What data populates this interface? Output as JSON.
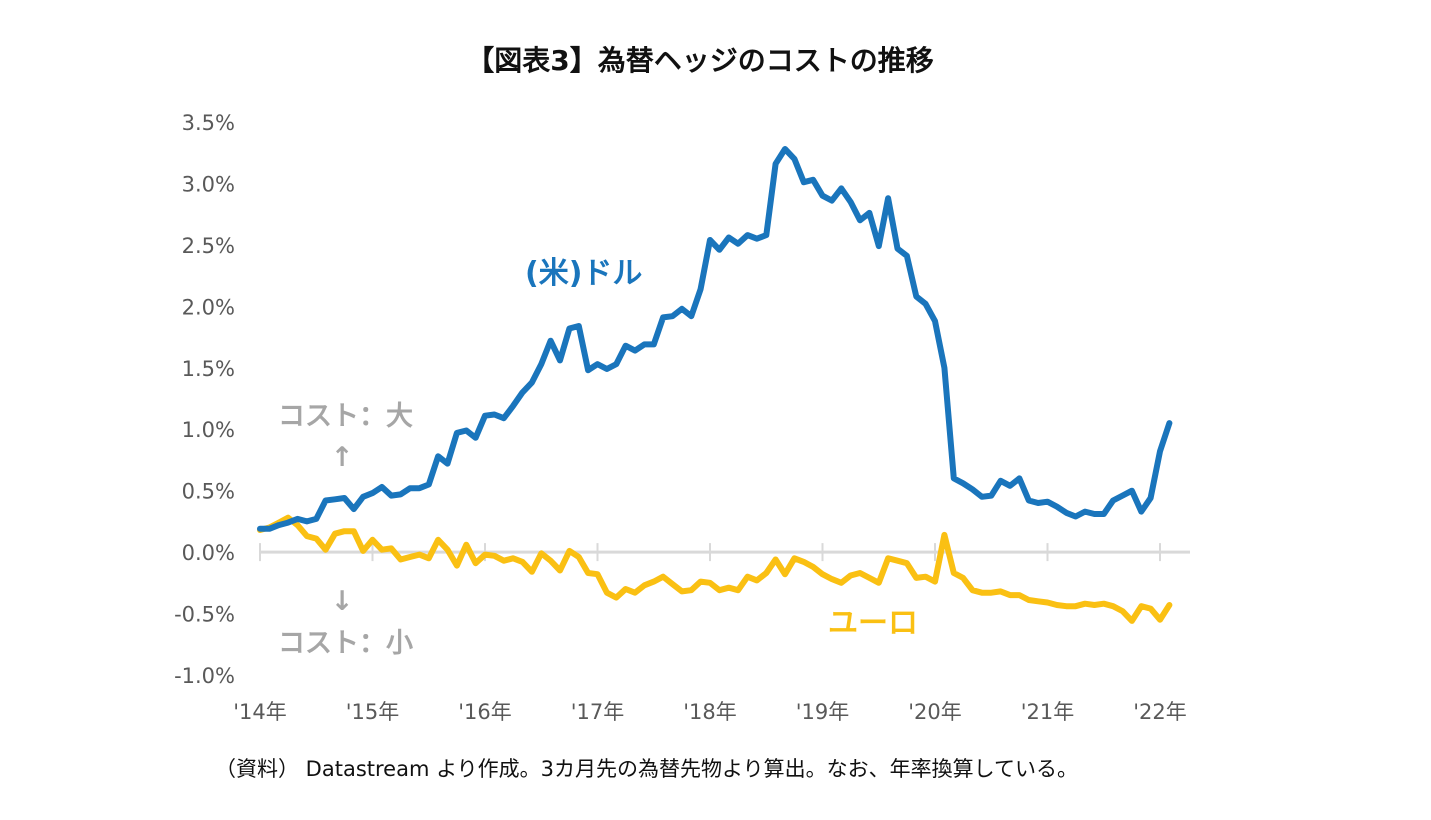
{
  "chart_data": {
    "type": "line",
    "title": "【図表3】為替ヘッジのコストの推移",
    "ylim": [
      -1.0,
      3.5
    ],
    "y_ticks": [
      3.5,
      3.0,
      2.5,
      2.0,
      1.5,
      1.0,
      0.5,
      0.0,
      -0.5,
      -1.0
    ],
    "y_tick_labels": [
      "3.5%",
      "3.0%",
      "2.5%",
      "2.0%",
      "1.5%",
      "1.0%",
      "0.5%",
      "0.0%",
      "-0.5%",
      "-1.0%"
    ],
    "x_tick_labels": [
      "'14年",
      "'15年",
      "'16年",
      "'17年",
      "'18年",
      "'19年",
      "'20年",
      "'21年",
      "'22年"
    ],
    "x_start_year": 2014,
    "points_per_year": 12,
    "grid": false,
    "series": [
      {
        "name": "(米)ドル",
        "color": "#1a75bc",
        "values": [
          0.19,
          0.19,
          0.22,
          0.24,
          0.27,
          0.25,
          0.27,
          0.42,
          0.43,
          0.44,
          0.35,
          0.45,
          0.48,
          0.53,
          0.46,
          0.47,
          0.52,
          0.52,
          0.55,
          0.78,
          0.72,
          0.97,
          0.99,
          0.93,
          1.11,
          1.12,
          1.09,
          1.19,
          1.3,
          1.38,
          1.53,
          1.72,
          1.56,
          1.82,
          1.84,
          1.48,
          1.53,
          1.49,
          1.53,
          1.68,
          1.64,
          1.69,
          1.69,
          1.91,
          1.92,
          1.98,
          1.92,
          2.14,
          2.54,
          2.46,
          2.56,
          2.51,
          2.58,
          2.55,
          2.58,
          3.16,
          3.28,
          3.2,
          3.01,
          3.03,
          2.9,
          2.86,
          2.96,
          2.85,
          2.7,
          2.76,
          2.49,
          2.88,
          2.47,
          2.41,
          2.08,
          2.02,
          1.88,
          1.5,
          0.6,
          0.56,
          0.51,
          0.45,
          0.46,
          0.58,
          0.54,
          0.6,
          0.42,
          0.4,
          0.41,
          0.37,
          0.32,
          0.29,
          0.33,
          0.31,
          0.31,
          0.42,
          0.46,
          0.5,
          0.33,
          0.44,
          0.82,
          1.05
        ]
      },
      {
        "name": "ユーロ",
        "color": "#fac013",
        "values": [
          0.18,
          0.2,
          0.24,
          0.28,
          0.22,
          0.13,
          0.11,
          0.02,
          0.15,
          0.17,
          0.17,
          0.01,
          0.1,
          0.02,
          0.03,
          -0.06,
          -0.04,
          -0.02,
          -0.05,
          0.1,
          0.02,
          -0.11,
          0.06,
          -0.09,
          -0.02,
          -0.03,
          -0.07,
          -0.05,
          -0.08,
          -0.16,
          -0.01,
          -0.07,
          -0.15,
          0.01,
          -0.04,
          -0.17,
          -0.18,
          -0.33,
          -0.37,
          -0.3,
          -0.33,
          -0.27,
          -0.24,
          -0.2,
          -0.26,
          -0.32,
          -0.31,
          -0.24,
          -0.25,
          -0.31,
          -0.29,
          -0.31,
          -0.2,
          -0.23,
          -0.17,
          -0.06,
          -0.18,
          -0.05,
          -0.08,
          -0.12,
          -0.18,
          -0.22,
          -0.25,
          -0.19,
          -0.17,
          -0.21,
          -0.25,
          -0.05,
          -0.07,
          -0.09,
          -0.21,
          -0.2,
          -0.24,
          0.14,
          -0.17,
          -0.21,
          -0.31,
          -0.33,
          -0.33,
          -0.32,
          -0.35,
          -0.35,
          -0.39,
          -0.4,
          -0.41,
          -0.43,
          -0.44,
          -0.44,
          -0.42,
          -0.43,
          -0.42,
          -0.44,
          -0.48,
          -0.56,
          -0.44,
          -0.46,
          -0.55,
          -0.43
        ]
      }
    ],
    "series_labels": [
      "(米)ドル",
      "ユーロ"
    ],
    "annotations": {
      "cost_up_text": "コスト：大",
      "cost_up_arrow": "↑",
      "cost_down_arrow": "↓",
      "cost_down_text": "コスト：小"
    },
    "source_note": "（資料） Datastream より作成。3カ月先の為替先物より算出。なお、年率換算している。"
  }
}
